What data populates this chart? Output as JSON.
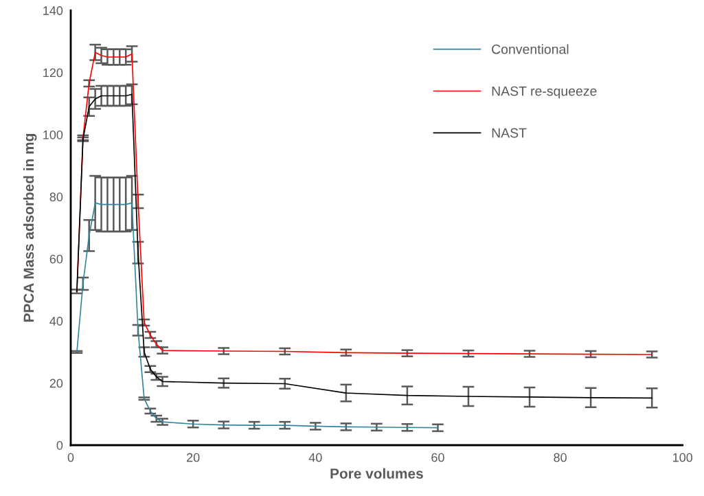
{
  "chart_data": {
    "type": "line",
    "xlabel": "Pore volumes",
    "ylabel": "PPCA Mass adsorbed in mg",
    "xlim": [
      0,
      100
    ],
    "xticks": [
      0,
      20,
      40,
      60,
      80,
      100
    ],
    "ylim": [
      0,
      140
    ],
    "yticks": [
      0,
      20,
      40,
      60,
      80,
      100,
      120,
      140
    ],
    "grid": false,
    "legend": "top right",
    "marker": "none",
    "line_style": "solid",
    "series": [
      {
        "name": "Conventional",
        "color": "#31859c",
        "x": [
          1,
          2,
          3,
          4,
          5,
          6,
          7,
          8,
          9,
          10,
          11,
          12,
          13,
          14,
          15,
          20,
          25,
          30,
          35,
          40,
          45,
          50,
          55,
          60
        ],
        "values": [
          30,
          52,
          67.5,
          78,
          77.5,
          77.5,
          77.5,
          77.5,
          77.5,
          78,
          37,
          15,
          11,
          8.5,
          7.5,
          6.8,
          6.5,
          6.4,
          6.4,
          6.1,
          5.9,
          5.8,
          5.7,
          5.6
        ],
        "errors": [
          0.3,
          2,
          5,
          8.7,
          8.7,
          8.7,
          8.7,
          8.7,
          8.7,
          8.7,
          1.7,
          0.4,
          0.8,
          1,
          1,
          1.1,
          1.1,
          1.1,
          1.1,
          1.1,
          1.1,
          1.1,
          1.1,
          1.1
        ]
      },
      {
        "name": "NAST re-squeeze",
        "color": "#ff0000",
        "x": [
          1,
          2,
          3,
          4,
          5,
          6,
          7,
          8,
          9,
          10,
          11,
          12,
          13,
          14,
          15,
          25,
          35,
          45,
          55,
          65,
          75,
          85,
          95
        ],
        "values": [
          49.5,
          99,
          116.5,
          126.5,
          125.5,
          125,
          125,
          125,
          125,
          126,
          78.5,
          39.5,
          35.5,
          32.5,
          30.5,
          30.3,
          30.2,
          29.8,
          29.6,
          29.5,
          29.4,
          29.3,
          29.2
        ],
        "errors": [
          0.6,
          0.8,
          1,
          2.5,
          2.5,
          2.5,
          2.5,
          2.5,
          2.5,
          2.5,
          2.2,
          1,
          1,
          1,
          1,
          1,
          1,
          1,
          1,
          1,
          1,
          1,
          1
        ]
      },
      {
        "name": "NAST",
        "color": "#000000",
        "x": [
          1,
          2,
          3,
          4,
          5,
          6,
          7,
          8,
          9,
          10,
          11,
          12,
          13,
          14,
          15,
          25,
          35,
          45,
          55,
          65,
          75,
          85,
          95
        ],
        "values": [
          49.5,
          98.5,
          109,
          111.5,
          112.5,
          112.5,
          112.5,
          112.5,
          112.5,
          113,
          62,
          30,
          24.5,
          22,
          20.5,
          20,
          19.8,
          16.8,
          16,
          15.7,
          15.5,
          15.3,
          15.2
        ],
        "errors": [
          null,
          0.6,
          3,
          3.2,
          3.2,
          3.2,
          3.2,
          3.2,
          3.2,
          3.2,
          3.5,
          1.5,
          1,
          1,
          1.5,
          1.5,
          1.6,
          2.7,
          2.9,
          3.1,
          3.1,
          3.1,
          3.1
        ]
      }
    ]
  }
}
